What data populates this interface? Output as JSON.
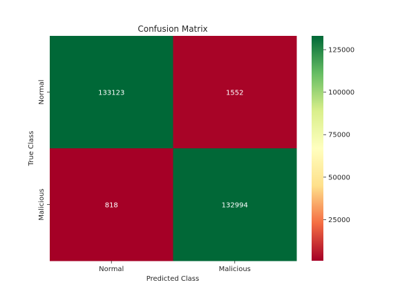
{
  "chart_data": {
    "type": "heatmap",
    "title": "Confusion Matrix",
    "xlabel": "Predicted Class",
    "ylabel": "True Class",
    "x_categories": [
      "Normal",
      "Malicious"
    ],
    "y_categories": [
      "Normal",
      "Malicious"
    ],
    "values": [
      [
        133123,
        1552
      ],
      [
        818,
        132994
      ]
    ],
    "colormap": "RdYlGn",
    "colormap_stops": [
      "#a50026",
      "#f46d43",
      "#fee08b",
      "#ffffbf",
      "#d9ef8b",
      "#66bd63",
      "#006837"
    ],
    "colorbar": {
      "vmin": 818,
      "vmax": 133123,
      "ticks": [
        25000,
        50000,
        75000,
        100000,
        125000
      ]
    },
    "grid": false,
    "legend": "colorbar-right"
  }
}
